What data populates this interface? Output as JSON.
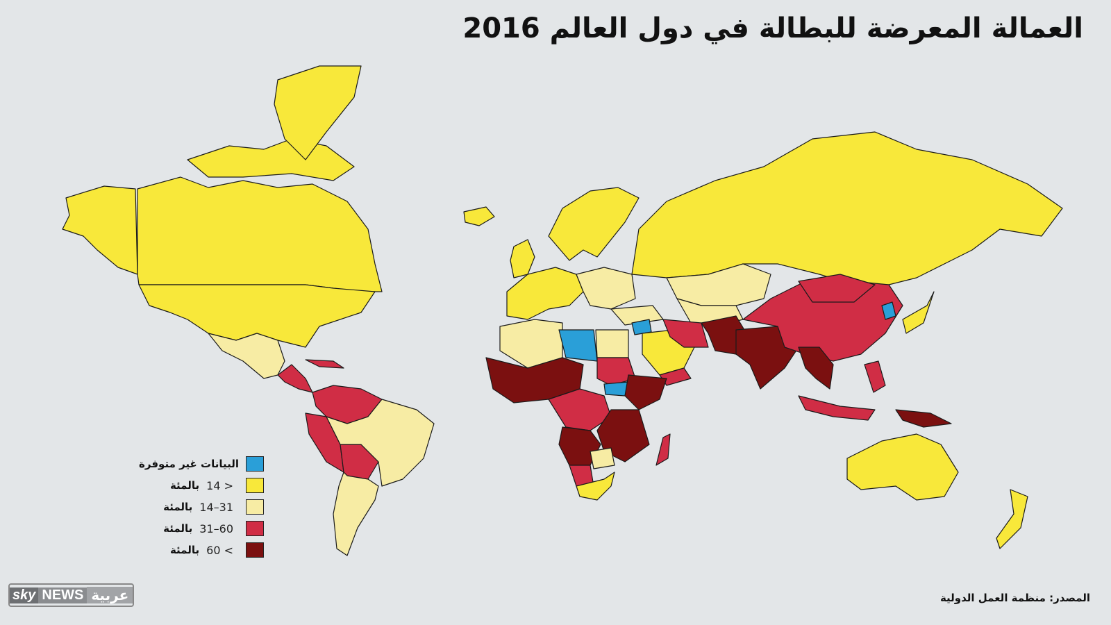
{
  "title": "العمالة المعرضة للبطالة في دول العالم 2016",
  "legend": [
    {
      "label": "البيانات غير متوفرة",
      "range": "",
      "color": "#2a9fd8"
    },
    {
      "label": "بالمئة",
      "range": "14 >",
      "color": "#f8e83a"
    },
    {
      "label": "بالمئة",
      "range": "14–31",
      "color": "#f7eca4"
    },
    {
      "label": "بالمئة",
      "range": "31–60",
      "color": "#d02d45"
    },
    {
      "label": "بالمئة",
      "range": "60 <",
      "color": "#7b1010"
    }
  ],
  "source": "المصدر: منظمة العمل الدولية",
  "logo": {
    "sky": "sky",
    "news": "NEWS",
    "arabic": "عربية"
  },
  "colors": {
    "background": "#e3e6e8",
    "no_data": "#2a9fd8",
    "under_14": "#f8e83a",
    "14_31": "#f7eca4",
    "31_60": "#d02d45",
    "over_60": "#7b1010"
  }
}
